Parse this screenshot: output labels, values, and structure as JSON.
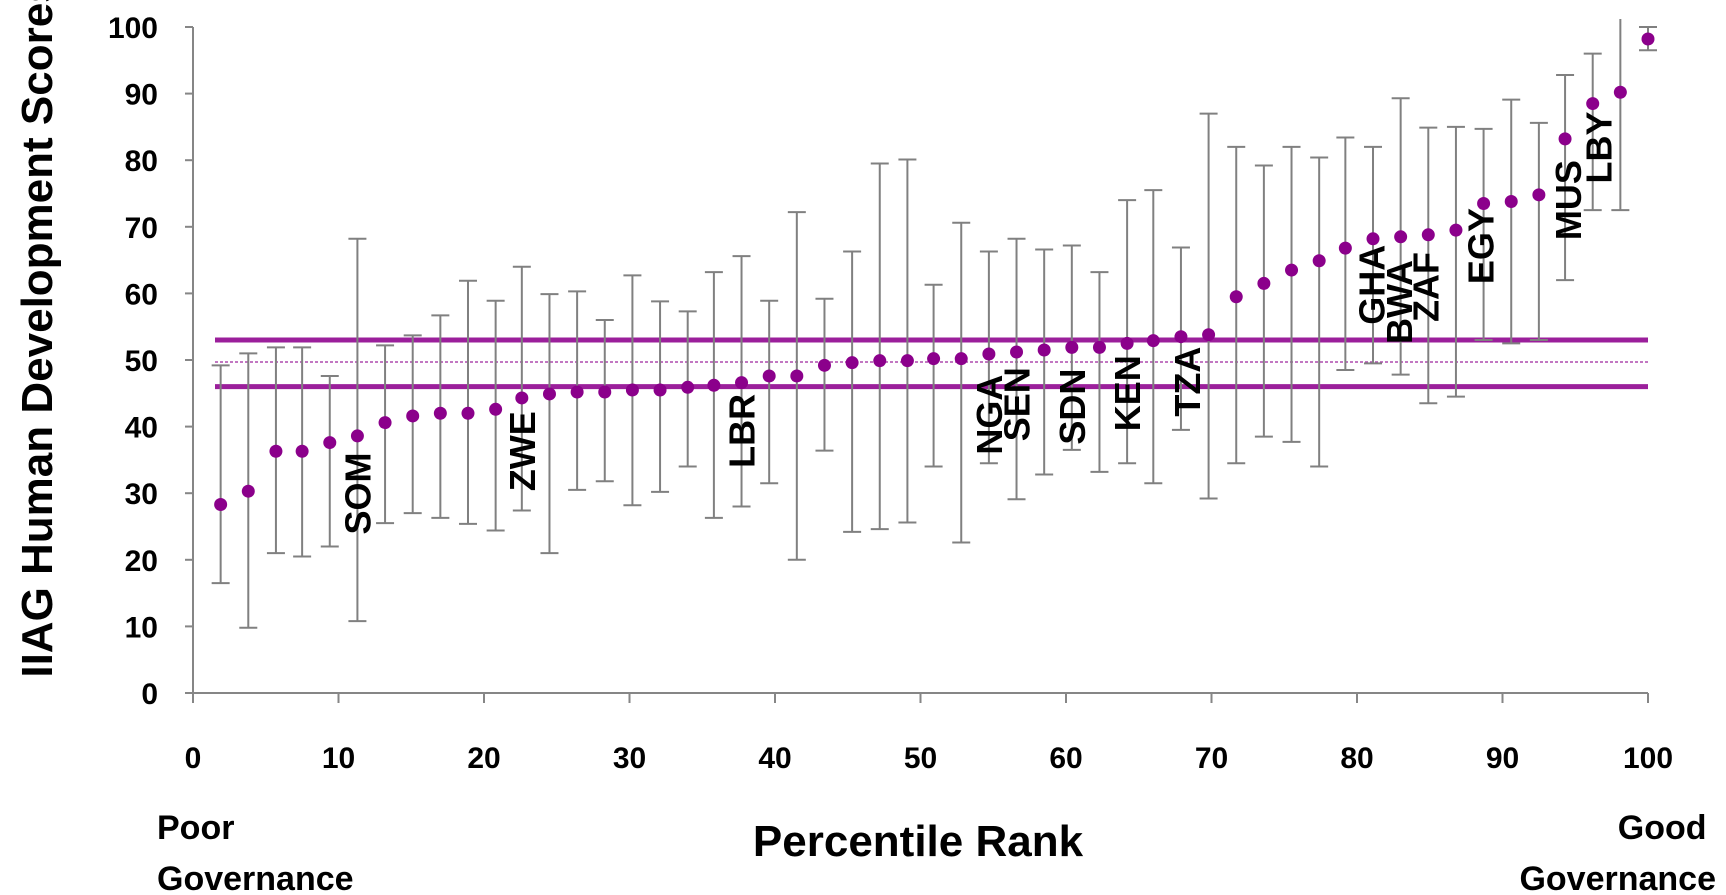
{
  "colors": {
    "point": "#8B008B",
    "band": "#9B1F9B",
    "errorbar": "#808080",
    "axis": "#868686"
  },
  "chart_data": {
    "type": "scatter",
    "title": "",
    "xlabel": "Percentile Rank",
    "ylabel": "IIAG Human Development Scores",
    "xlim": [
      0,
      100
    ],
    "ylim": [
      0,
      100
    ],
    "x_ticks": [
      "0",
      "10",
      "20",
      "30",
      "40",
      "50",
      "60",
      "70",
      "80",
      "90",
      "100"
    ],
    "y_ticks": [
      "0",
      "10",
      "20",
      "30",
      "40",
      "50",
      "60",
      "70",
      "80",
      "90",
      "100"
    ],
    "grid": false,
    "x_end_labels": {
      "left": "Poor Governance",
      "right": "Good Governance"
    },
    "reference_lines": {
      "upper": 53,
      "center": 49.7,
      "lower": 46
    },
    "series": [
      {
        "x": [
          1.9,
          3.8,
          5.7,
          7.5,
          9.4,
          11.3,
          13.2,
          15.1,
          17.0,
          18.9,
          20.8,
          22.6,
          24.5,
          26.4,
          28.3,
          30.2,
          32.1,
          34.0,
          35.8,
          37.7,
          39.6,
          41.5,
          43.4,
          45.3,
          47.2,
          49.1,
          50.9,
          52.8,
          54.7,
          56.6,
          58.5,
          60.4,
          62.3,
          64.2,
          66.0,
          67.9,
          69.8,
          71.7,
          73.6,
          75.5,
          77.4,
          79.2,
          81.1,
          83.0,
          84.9,
          86.8,
          88.7,
          90.6,
          92.5,
          94.3,
          96.2,
          98.1,
          100.0
        ],
        "y": [
          28.3,
          30.3,
          36.3,
          36.3,
          37.6,
          38.6,
          40.6,
          41.6,
          42.0,
          42.0,
          42.6,
          44.3,
          44.9,
          45.2,
          45.2,
          45.5,
          45.5,
          45.9,
          46.2,
          46.6,
          47.6,
          47.6,
          49.2,
          49.6,
          49.9,
          49.9,
          50.2,
          50.2,
          50.9,
          51.2,
          51.5,
          51.9,
          51.9,
          52.5,
          52.9,
          53.5,
          53.8,
          59.5,
          61.5,
          63.5,
          64.9,
          66.8,
          68.2,
          68.5,
          68.8,
          69.5,
          73.5,
          73.8,
          74.8,
          83.2,
          88.5,
          90.2,
          98.2
        ],
        "y_low": [
          16.5,
          9.8,
          21.0,
          20.5,
          22.0,
          10.8,
          25.5,
          27.0,
          26.3,
          25.4,
          24.4,
          27.4,
          21.0,
          30.5,
          31.8,
          28.2,
          30.2,
          34.0,
          26.3,
          28.0,
          31.5,
          20.0,
          36.4,
          24.2,
          24.6,
          25.6,
          34.0,
          22.6,
          34.5,
          29.1,
          32.8,
          36.5,
          33.2,
          34.5,
          31.5,
          39.5,
          29.2,
          34.5,
          38.5,
          37.7,
          34.0,
          48.5,
          49.5,
          47.8,
          43.5,
          44.5,
          53.0,
          52.5,
          53.0,
          62.0,
          72.5,
          72.5,
          96.5
        ],
        "y_high": [
          49.2,
          51.0,
          51.9,
          51.9,
          47.6,
          68.2,
          52.2,
          53.7,
          56.7,
          61.9,
          58.9,
          64.0,
          59.9,
          60.3,
          56.0,
          62.7,
          58.8,
          57.3,
          63.2,
          65.6,
          58.9,
          72.2,
          59.2,
          66.3,
          79.5,
          80.1,
          61.3,
          70.6,
          66.3,
          68.2,
          66.6,
          67.2,
          63.2,
          74.0,
          75.5,
          66.9,
          87.0,
          82.0,
          79.2,
          82.0,
          80.4,
          83.4,
          82.0,
          89.3,
          84.9,
          85.0,
          84.7,
          89.1,
          85.6,
          92.8,
          96.0,
          101.0,
          100.0
        ]
      }
    ],
    "annotations": [
      {
        "text": "SOM",
        "x": 11.3,
        "y": 23.8
      },
      {
        "text": "ZWE",
        "x": 22.6,
        "y": 30.3
      },
      {
        "text": "LBR",
        "x": 37.7,
        "y": 33.8
      },
      {
        "text": "NGA",
        "x": 54.7,
        "y": 35.8
      },
      {
        "text": "SEN",
        "x": 56.6,
        "y": 37.8
      },
      {
        "text": "SDN",
        "x": 60.4,
        "y": 37.3
      },
      {
        "text": "KEN",
        "x": 64.2,
        "y": 39.3
      },
      {
        "text": "TZA",
        "x": 68.3,
        "y": 41.5
      },
      {
        "text": "GHA",
        "x": 81.0,
        "y": 55.3
      },
      {
        "text": "BWA",
        "x": 82.9,
        "y": 52.4
      },
      {
        "text": "ZAF",
        "x": 84.7,
        "y": 55.7
      },
      {
        "text": "EGY",
        "x": 88.5,
        "y": 61.4
      },
      {
        "text": "MUS",
        "x": 94.5,
        "y": 68.0
      },
      {
        "text": "LBY",
        "x": 96.6,
        "y": 76.5
      }
    ]
  }
}
